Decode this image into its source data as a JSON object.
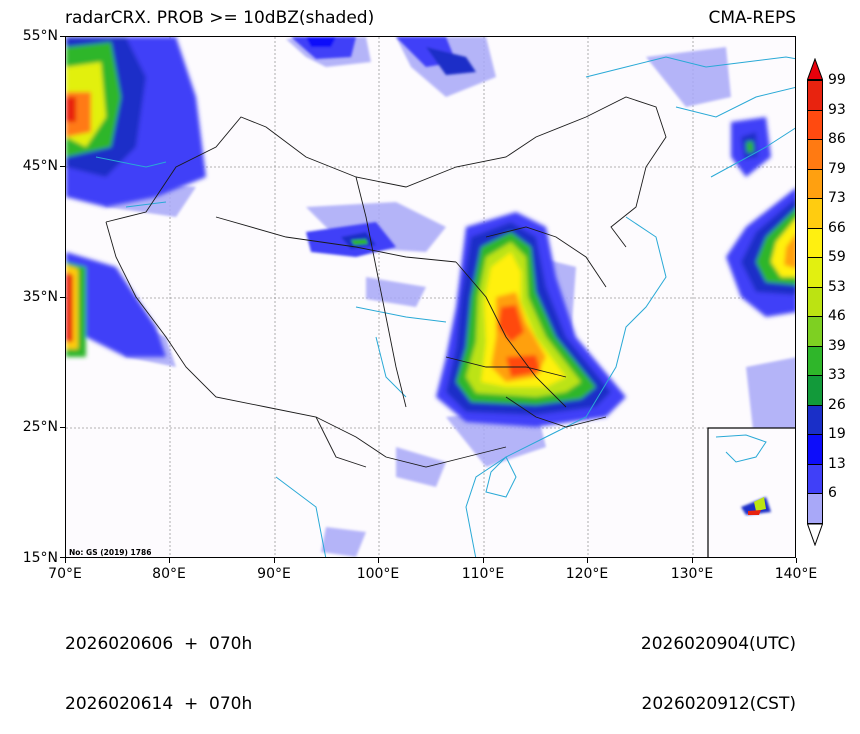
{
  "header": {
    "title_left": "radarCRX. PROB >= 10dBZ(shaded)",
    "title_right": "CMA-REPS"
  },
  "map": {
    "projection": "PlateCarree",
    "extent": {
      "lon_min": 70,
      "lon_max": 140,
      "lat_min": 15,
      "lat_max": 55
    },
    "lat_ticks": [
      "55°N",
      "45°N",
      "35°N",
      "25°N",
      "15°N"
    ],
    "lon_ticks": [
      "70°E",
      "80°E",
      "90°E",
      "100°E",
      "110°E",
      "120°E",
      "130°E",
      "140°E"
    ],
    "gridlines": "dotted grey",
    "coastline_color": "#29a9d6",
    "border_color": "#1a1a1a",
    "approval_note": "No: GS (2019) 1786",
    "inset": "South China Sea inset (lower right)"
  },
  "colorbar": {
    "extend": "both",
    "labels": [
      "99",
      "93",
      "86",
      "79",
      "73",
      "66",
      "59",
      "53",
      "46",
      "39",
      "33",
      "26",
      "19",
      "13",
      "6"
    ],
    "colors": [
      "#e8230f",
      "#ff4a10",
      "#ff7a12",
      "#ffa010",
      "#ffcc10",
      "#fff010",
      "#e2f010",
      "#bce312",
      "#7ed022",
      "#2fb62a",
      "#129a3a",
      "#1a2fc8",
      "#0d0dfa",
      "#4040f8",
      "#a8a8f8"
    ],
    "over_color": "#e8000b",
    "under_color": "#ffffff"
  },
  "footer": {
    "init_utc": "2026020606  +  070h",
    "init_cst": "2026020614  +  070h",
    "valid_utc": "2026020904(UTC)",
    "valid_cst": "2026020912(CST)"
  }
}
